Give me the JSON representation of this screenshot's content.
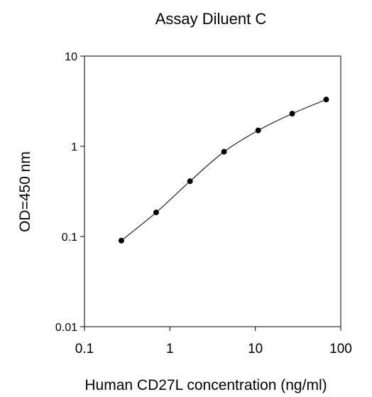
{
  "chart_data": {
    "type": "line",
    "title": "Assay Diluent C",
    "xlabel": "Human CD27L concentration (ng/ml)",
    "ylabel": "OD=450 nm",
    "x_scale": "log",
    "y_scale": "log",
    "xlim": [
      0.1,
      100
    ],
    "ylim": [
      0.01,
      10
    ],
    "x_ticks": [
      {
        "value": 0.1,
        "label": "0.1"
      },
      {
        "value": 1,
        "label": "1"
      },
      {
        "value": 10,
        "label": "10"
      },
      {
        "value": 100,
        "label": "100"
      }
    ],
    "y_ticks": [
      {
        "value": 0.01,
        "label": "0.01"
      },
      {
        "value": 0.1,
        "label": "0.1"
      },
      {
        "value": 1,
        "label": "1"
      },
      {
        "value": 10,
        "label": "10"
      }
    ],
    "grid": false,
    "series": [
      {
        "x": [
          0.27,
          0.69,
          1.72,
          4.3,
          10.8,
          27,
          67.5
        ],
        "y": [
          0.09,
          0.185,
          0.41,
          0.87,
          1.5,
          2.3,
          3.3
        ],
        "marker": "circle",
        "color": "#000000"
      }
    ]
  }
}
